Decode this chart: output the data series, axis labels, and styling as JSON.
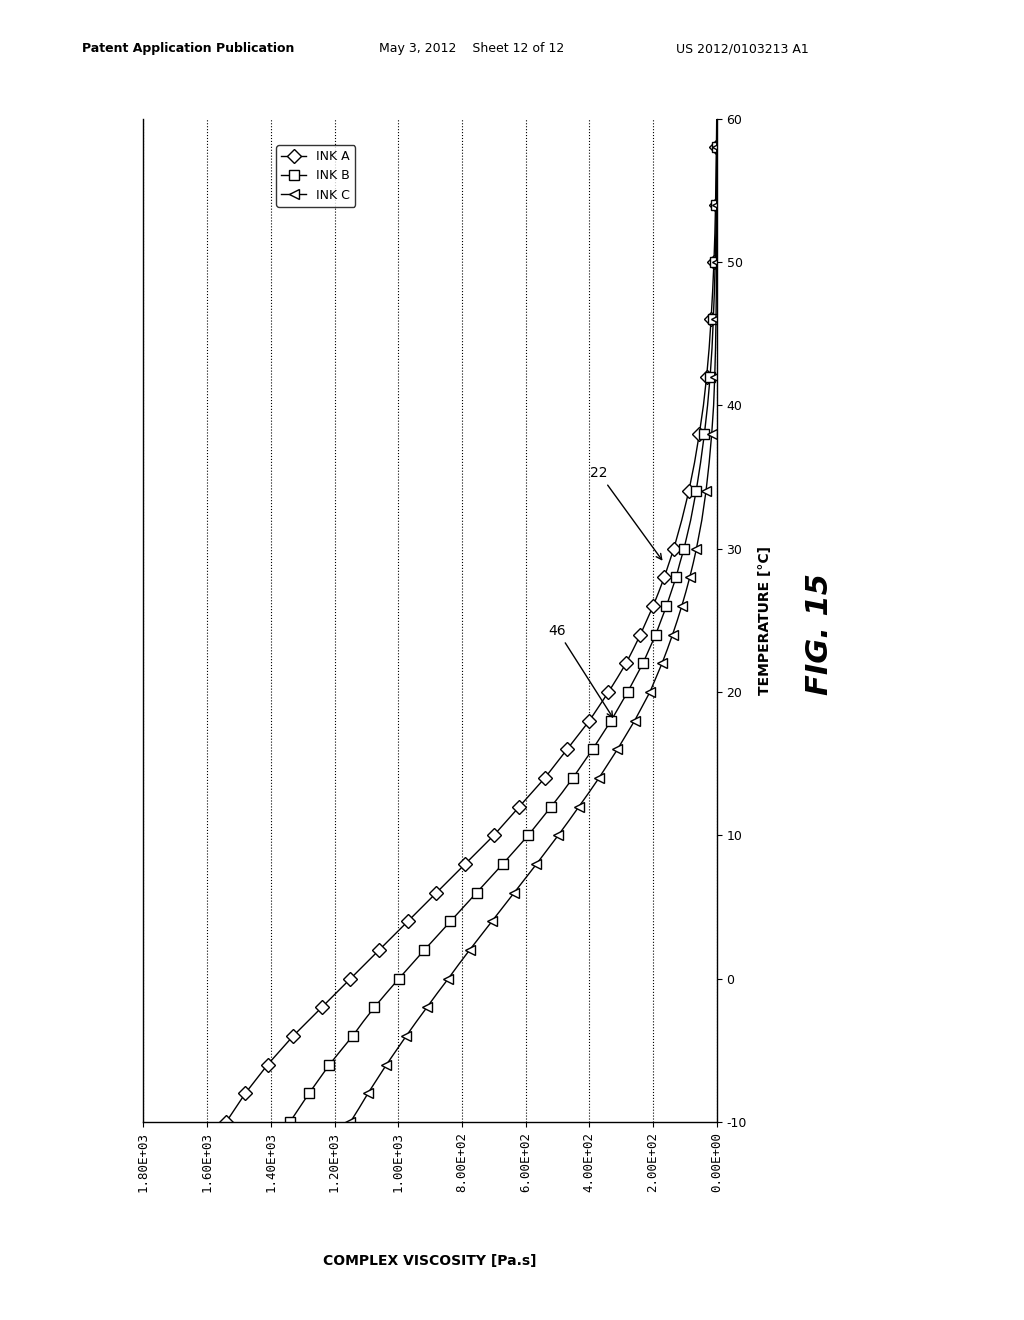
{
  "xlabel": "COMPLEX VISCOSITY [Pa.s]",
  "ylabel": "TEMPERATURE [°C]",
  "xlim": [
    1800,
    0
  ],
  "ylim": [
    -10,
    60
  ],
  "xticks": [
    1800,
    1600,
    1400,
    1200,
    1000,
    800,
    600,
    400,
    200,
    0
  ],
  "xtick_labels": [
    "1.80E+03",
    "1.60E+03",
    "1.40E+03",
    "1.20E+03",
    "1.00E+03",
    "8.00E+02",
    "6.00E+02",
    "4.00E+02",
    "2.00E+02",
    "0.00E+00"
  ],
  "yticks": [
    -10,
    0,
    10,
    20,
    30,
    40,
    50,
    60
  ],
  "ytick_labels": [
    "-10",
    "0",
    "10",
    "20",
    "30",
    "40",
    "50",
    "60"
  ],
  "legend_labels": [
    "INK A",
    "INK B",
    "INK C"
  ],
  "ink_A": {
    "temp": [
      -10,
      -9,
      -8,
      -7,
      -6,
      -5,
      -4,
      -3,
      -2,
      -1,
      0,
      1,
      2,
      3,
      4,
      5,
      6,
      7,
      8,
      9,
      10,
      11,
      12,
      13,
      14,
      15,
      16,
      17,
      18,
      19,
      20,
      21,
      22,
      23,
      24,
      25,
      26,
      27,
      28,
      29,
      30,
      32,
      34,
      36,
      38,
      40,
      42,
      44,
      46,
      48,
      50,
      52,
      54,
      56,
      58,
      60
    ],
    "visc": [
      1540,
      1510,
      1480,
      1445,
      1410,
      1370,
      1330,
      1285,
      1240,
      1195,
      1150,
      1105,
      1060,
      1015,
      970,
      925,
      880,
      835,
      790,
      745,
      700,
      660,
      620,
      580,
      540,
      505,
      470,
      435,
      400,
      370,
      340,
      312,
      285,
      262,
      240,
      220,
      200,
      182,
      165,
      150,
      135,
      110,
      88,
      70,
      55,
      42,
      32,
      24,
      18,
      13,
      9,
      6,
      4,
      2.5,
      1.2,
      0.3
    ]
  },
  "ink_B": {
    "temp": [
      -10,
      -9,
      -8,
      -7,
      -6,
      -5,
      -4,
      -3,
      -2,
      -1,
      0,
      1,
      2,
      3,
      4,
      5,
      6,
      7,
      8,
      9,
      10,
      11,
      12,
      13,
      14,
      15,
      16,
      17,
      18,
      19,
      20,
      21,
      22,
      23,
      24,
      25,
      26,
      27,
      28,
      29,
      30,
      32,
      34,
      36,
      38,
      40,
      42,
      44,
      46,
      48,
      50,
      52,
      54,
      56,
      58,
      60
    ],
    "visc": [
      1340,
      1310,
      1280,
      1248,
      1216,
      1180,
      1143,
      1110,
      1075,
      1037,
      998,
      958,
      918,
      877,
      836,
      795,
      754,
      713,
      672,
      632,
      592,
      556,
      520,
      485,
      452,
      421,
      390,
      361,
      332,
      306,
      280,
      256,
      232,
      212,
      192,
      175,
      158,
      143,
      128,
      116,
      103,
      82,
      65,
      51,
      39,
      29,
      21,
      15,
      11,
      7.5,
      5,
      3,
      2,
      1.2,
      0.5,
      0.1
    ]
  },
  "ink_C": {
    "temp": [
      -10,
      -9,
      -8,
      -7,
      -6,
      -5,
      -4,
      -3,
      -2,
      -1,
      0,
      1,
      2,
      3,
      4,
      5,
      6,
      7,
      8,
      9,
      10,
      11,
      12,
      13,
      14,
      15,
      16,
      17,
      18,
      19,
      20,
      21,
      22,
      23,
      24,
      25,
      26,
      27,
      28,
      29,
      30,
      32,
      34,
      36,
      38,
      40,
      42,
      44,
      46,
      48,
      50,
      52,
      54,
      56,
      58,
      60
    ],
    "visc": [
      1150,
      1122,
      1095,
      1066,
      1037,
      1006,
      975,
      943,
      910,
      877,
      843,
      810,
      776,
      741,
      706,
      671,
      636,
      601,
      566,
      532,
      498,
      465,
      433,
      401,
      370,
      341,
      312,
      285,
      258,
      234,
      210,
      191,
      172,
      155,
      139,
      124,
      110,
      97,
      85,
      74,
      64,
      47,
      34,
      24,
      16,
      10,
      6.5,
      4,
      2.5,
      1.5,
      0.8,
      0.4,
      0.2,
      0.1,
      0.05,
      0.01
    ]
  },
  "background_color": "#ffffff",
  "marker_size": 7,
  "marker_every_A": 2,
  "marker_every_B": 2,
  "marker_every_C": 2
}
